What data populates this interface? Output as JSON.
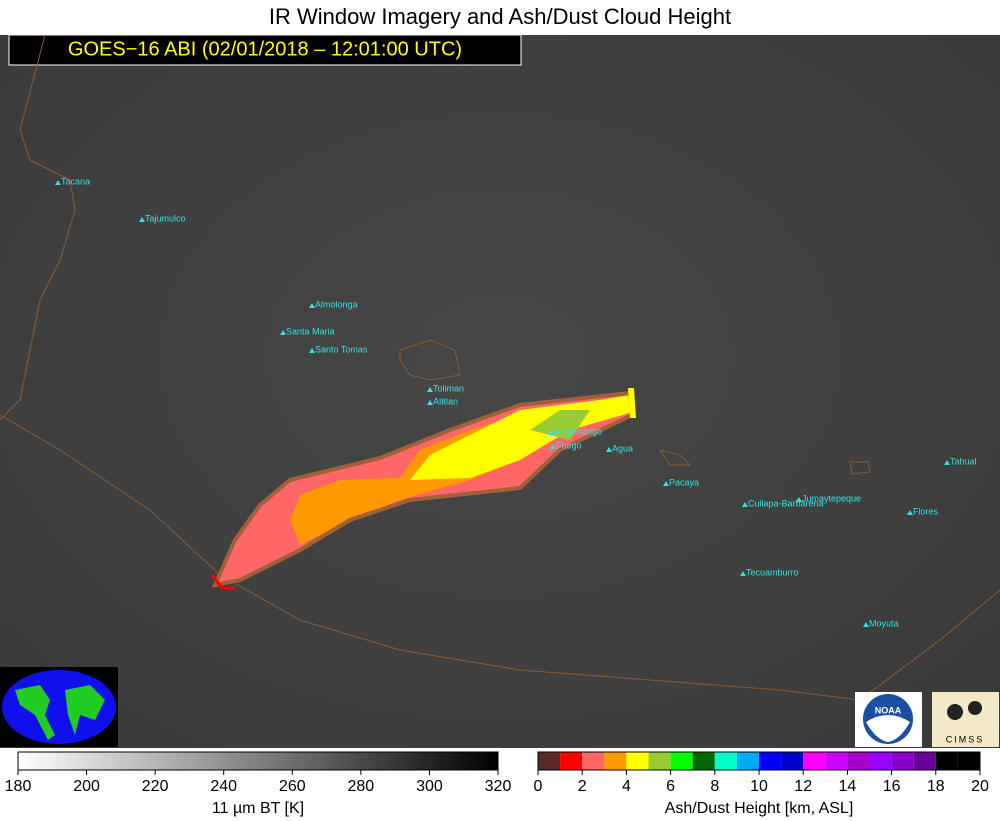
{
  "title": "IR Window Imagery and Ash/Dust Cloud Height",
  "subtitle": "GOES−16 ABI (02/01/2018 – 12:01:00 UTC)",
  "volcanoes": [
    "Tacana",
    "Tajumulco",
    "Almolonga",
    "Santa Maria",
    "Santo Tomas",
    "Toliman",
    "Atitlan",
    "Acatenango",
    "Fuego",
    "Agua",
    "Pacaya",
    "Cuilapa-Barbarena",
    "Jumaytepeque",
    "Tahual",
    "Flores",
    "Tecuamburro",
    "Moyuta"
  ],
  "logos": {
    "noaa": "NOAA",
    "cimss": "CIMSS"
  },
  "colorbars": [
    {
      "label": "11 µm BT [K]",
      "lim": [
        180,
        320
      ],
      "ticks": [
        180,
        200,
        220,
        240,
        260,
        280,
        300,
        320
      ],
      "colors": [
        "#ffffff",
        "#000000"
      ]
    },
    {
      "label": "Ash/Dust Height [km, ASL]",
      "lim": [
        0,
        20
      ],
      "ticks": [
        0,
        2,
        4,
        6,
        8,
        10,
        12,
        14,
        16,
        18,
        20
      ],
      "colors": [
        "#5a2a2a",
        "#ff0000",
        "#ff6666",
        "#ff9900",
        "#ffff00",
        "#99cc33",
        "#00ff00",
        "#006600",
        "#00ffcc",
        "#00aaff",
        "#0000ff",
        "#0000cc",
        "#ff00ff",
        "#cc00ff",
        "#aa00cc",
        "#9900ff",
        "#8800cc",
        "#660099",
        "#000000",
        "#000000"
      ]
    }
  ]
}
